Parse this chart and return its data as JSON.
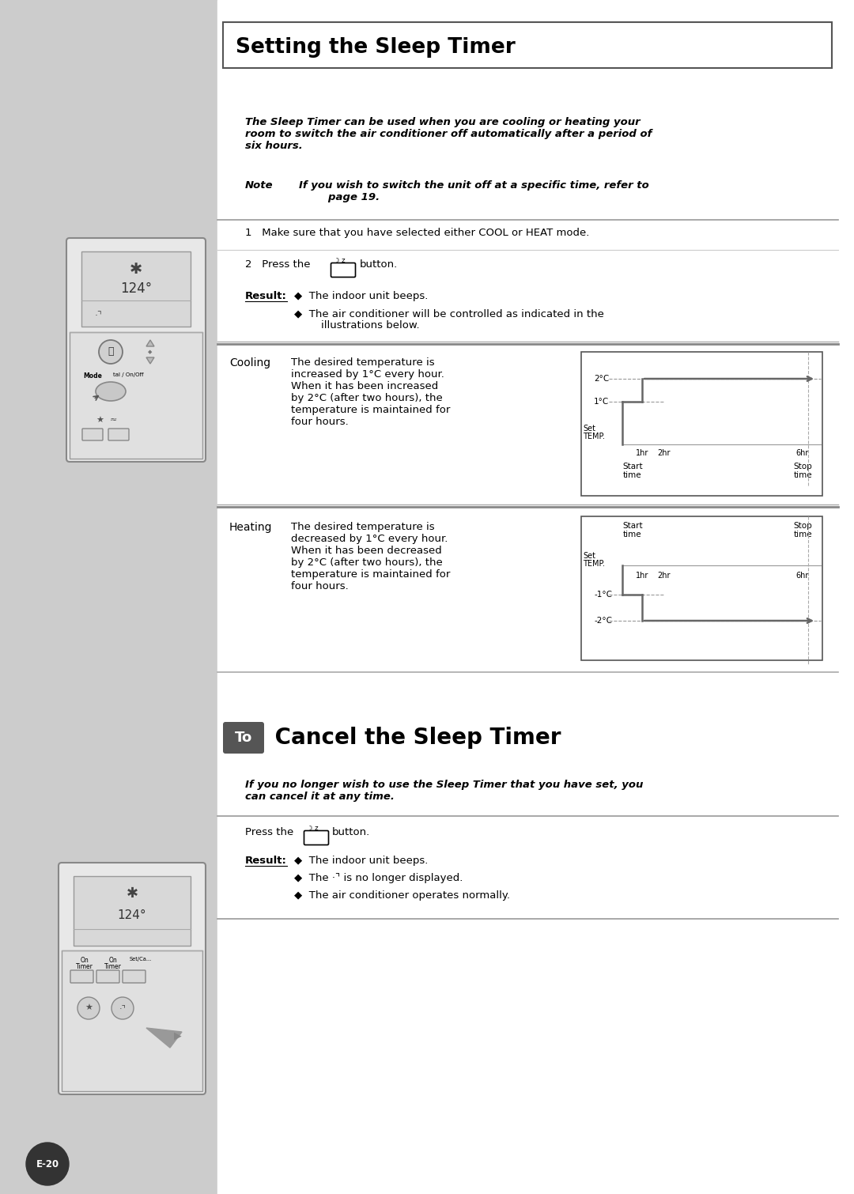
{
  "page_bg": "#cccccc",
  "content_bg": "#ffffff",
  "left_panel_color": "#cccccc",
  "title1": "Setting the Sleep Timer",
  "title2_prefix": "To",
  "title2_main": " Cancel the Sleep Timer",
  "section1_intro": "The Sleep Timer can be used when you are cooling or heating your\nroom to switch the air conditioner off automatically after a period of\nsix hours.",
  "note_label": "Note",
  "note_text": "If you wish to switch the unit off at a specific time, refer to\n        page 19.",
  "step1": "1   Make sure that you have selected either COOL or HEAT mode.",
  "step2_pre": "2   Press the",
  "step2_post": "button.",
  "result_label": "Result:",
  "result1a": "◆  The indoor unit beeps.",
  "result1b": "◆  The air conditioner will be controlled as indicated in the\n        illustrations below.",
  "cooling_label": "Cooling",
  "cooling_text": "The desired temperature is\nincreased by 1°C every hour.\nWhen it has been increased\nby 2°C (after two hours), the\ntemperature is maintained for\nfour hours.",
  "heating_label": "Heating",
  "heating_text": "The desired temperature is\ndecreased by 1°C every hour.\nWhen it has been decreased\nby 2°C (after two hours), the\ntemperature is maintained for\nfour hours.",
  "section2_intro": "If you no longer wish to use the Sleep Timer that you have set, you\ncan cancel it at any time.",
  "cancel_press": "Press the",
  "cancel_button_post": "button.",
  "result2_label": "Result:",
  "result2a": "◆  The indoor unit beeps.",
  "result2b": "◆  The ·⌝ is no longer displayed.",
  "result2c": "◆  The air conditioner operates normally.",
  "page_num": "E-20"
}
